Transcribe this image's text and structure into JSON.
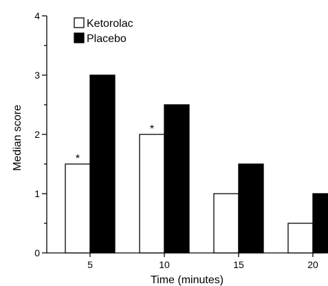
{
  "chart_data": {
    "type": "bar",
    "title": "",
    "xlabel": "Time (minutes)",
    "ylabel": "Median score",
    "categories": [
      "5",
      "10",
      "15",
      "20"
    ],
    "series": [
      {
        "name": "Ketorolac",
        "values": [
          1.5,
          2,
          1,
          0.5
        ],
        "color": "#ffffff",
        "annotations": [
          "*",
          "*",
          "",
          ""
        ]
      },
      {
        "name": "Placebo",
        "values": [
          3,
          2.5,
          1.5,
          1
        ],
        "color": "#000000",
        "annotations": [
          "",
          "",
          "",
          ""
        ]
      }
    ],
    "ylim": [
      0,
      4
    ],
    "yticks": [
      "0",
      "1",
      "2",
      "3",
      "4"
    ],
    "legend_position": "top-left",
    "grid": false
  }
}
